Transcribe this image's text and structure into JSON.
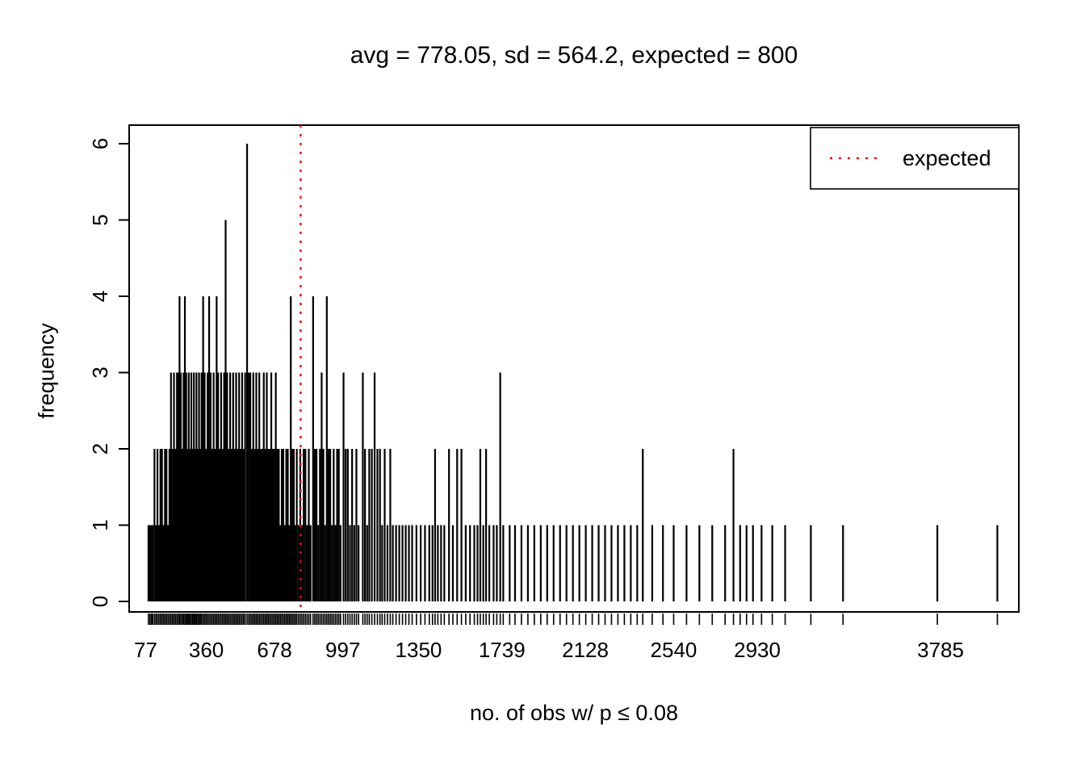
{
  "chart_data": {
    "type": "bar",
    "title": "avg = 778.05, sd = 564.2, expected = 800",
    "xlabel": "no. of obs w/ p ≤ 0.08",
    "ylabel": "frequency",
    "x_ticks": [
      77,
      360,
      678,
      997,
      1350,
      1739,
      2128,
      2540,
      2930,
      3785
    ],
    "y_ticks": [
      0,
      1,
      2,
      3,
      4,
      5,
      6
    ],
    "xlim": [
      0,
      4150
    ],
    "ylim": [
      0,
      6
    ],
    "grid": false,
    "spike_color": "#000000",
    "expected_line": {
      "x": 800,
      "color": "#ff0000",
      "style": "dotted",
      "label": "expected"
    },
    "legend": {
      "position": "top-right",
      "entries": [
        {
          "label": "expected",
          "color": "#ff0000",
          "line_style": "dotted"
        }
      ]
    },
    "points": [
      [
        90,
        1
      ],
      [
        97,
        1
      ],
      [
        104,
        1
      ],
      [
        110,
        1
      ],
      [
        118,
        2
      ],
      [
        125,
        1
      ],
      [
        132,
        2
      ],
      [
        139,
        1
      ],
      [
        146,
        2
      ],
      [
        153,
        2
      ],
      [
        160,
        1
      ],
      [
        167,
        2
      ],
      [
        174,
        2
      ],
      [
        181,
        1
      ],
      [
        188,
        2
      ],
      [
        195,
        3
      ],
      [
        202,
        2
      ],
      [
        209,
        3
      ],
      [
        216,
        2
      ],
      [
        223,
        3
      ],
      [
        230,
        3
      ],
      [
        235,
        4
      ],
      [
        241,
        3
      ],
      [
        248,
        2
      ],
      [
        254,
        3
      ],
      [
        260,
        4
      ],
      [
        266,
        3
      ],
      [
        272,
        2
      ],
      [
        278,
        3
      ],
      [
        284,
        2
      ],
      [
        290,
        3
      ],
      [
        296,
        2
      ],
      [
        302,
        3
      ],
      [
        308,
        2
      ],
      [
        314,
        3
      ],
      [
        320,
        2
      ],
      [
        326,
        3
      ],
      [
        332,
        2
      ],
      [
        338,
        3
      ],
      [
        345,
        4
      ],
      [
        352,
        3
      ],
      [
        359,
        2
      ],
      [
        366,
        3
      ],
      [
        373,
        4
      ],
      [
        380,
        3
      ],
      [
        387,
        2
      ],
      [
        394,
        3
      ],
      [
        401,
        2
      ],
      [
        408,
        4
      ],
      [
        415,
        3
      ],
      [
        422,
        2
      ],
      [
        429,
        3
      ],
      [
        436,
        2
      ],
      [
        443,
        3
      ],
      [
        450,
        5
      ],
      [
        457,
        3
      ],
      [
        464,
        2
      ],
      [
        471,
        3
      ],
      [
        478,
        2
      ],
      [
        485,
        3
      ],
      [
        492,
        2
      ],
      [
        499,
        3
      ],
      [
        506,
        2
      ],
      [
        513,
        3
      ],
      [
        520,
        2
      ],
      [
        527,
        3
      ],
      [
        534,
        2
      ],
      [
        541,
        3
      ],
      [
        550,
        6
      ],
      [
        558,
        3
      ],
      [
        565,
        3
      ],
      [
        572,
        2
      ],
      [
        579,
        3
      ],
      [
        586,
        2
      ],
      [
        593,
        3
      ],
      [
        600,
        2
      ],
      [
        607,
        3
      ],
      [
        614,
        2
      ],
      [
        621,
        2
      ],
      [
        628,
        3
      ],
      [
        635,
        2
      ],
      [
        642,
        3
      ],
      [
        649,
        2
      ],
      [
        656,
        2
      ],
      [
        663,
        3
      ],
      [
        670,
        2
      ],
      [
        677,
        2
      ],
      [
        684,
        3
      ],
      [
        691,
        2
      ],
      [
        698,
        2
      ],
      [
        705,
        1
      ],
      [
        712,
        2
      ],
      [
        719,
        2
      ],
      [
        726,
        1
      ],
      [
        733,
        2
      ],
      [
        740,
        2
      ],
      [
        747,
        1
      ],
      [
        754,
        4
      ],
      [
        761,
        2
      ],
      [
        768,
        2
      ],
      [
        775,
        1
      ],
      [
        782,
        2
      ],
      [
        790,
        1
      ],
      [
        798,
        2
      ],
      [
        806,
        1
      ],
      [
        814,
        2
      ],
      [
        822,
        2
      ],
      [
        830,
        1
      ],
      [
        838,
        2
      ],
      [
        846,
        1
      ],
      [
        858,
        4
      ],
      [
        866,
        2
      ],
      [
        874,
        2
      ],
      [
        882,
        1
      ],
      [
        890,
        2
      ],
      [
        898,
        3
      ],
      [
        906,
        2
      ],
      [
        914,
        1
      ],
      [
        922,
        4
      ],
      [
        930,
        2
      ],
      [
        938,
        2
      ],
      [
        946,
        1
      ],
      [
        954,
        2
      ],
      [
        962,
        1
      ],
      [
        970,
        2
      ],
      [
        978,
        2
      ],
      [
        986,
        1
      ],
      [
        1000,
        3
      ],
      [
        1010,
        2
      ],
      [
        1020,
        2
      ],
      [
        1030,
        1
      ],
      [
        1040,
        2
      ],
      [
        1050,
        1
      ],
      [
        1060,
        2
      ],
      [
        1070,
        1
      ],
      [
        1090,
        3
      ],
      [
        1100,
        2
      ],
      [
        1110,
        1
      ],
      [
        1120,
        2
      ],
      [
        1132,
        2
      ],
      [
        1145,
        3
      ],
      [
        1158,
        2
      ],
      [
        1170,
        2
      ],
      [
        1180,
        1
      ],
      [
        1192,
        2
      ],
      [
        1205,
        1
      ],
      [
        1218,
        2
      ],
      [
        1230,
        1
      ],
      [
        1245,
        1
      ],
      [
        1260,
        1
      ],
      [
        1275,
        1
      ],
      [
        1290,
        1
      ],
      [
        1305,
        1
      ],
      [
        1320,
        1
      ],
      [
        1340,
        1
      ],
      [
        1360,
        1
      ],
      [
        1380,
        1
      ],
      [
        1400,
        1
      ],
      [
        1415,
        1
      ],
      [
        1427,
        2
      ],
      [
        1440,
        1
      ],
      [
        1455,
        1
      ],
      [
        1470,
        1
      ],
      [
        1492,
        2
      ],
      [
        1510,
        1
      ],
      [
        1530,
        2
      ],
      [
        1550,
        2
      ],
      [
        1570,
        1
      ],
      [
        1590,
        1
      ],
      [
        1610,
        1
      ],
      [
        1625,
        1
      ],
      [
        1638,
        2
      ],
      [
        1652,
        1
      ],
      [
        1665,
        2
      ],
      [
        1680,
        1
      ],
      [
        1700,
        1
      ],
      [
        1715,
        1
      ],
      [
        1731,
        3
      ],
      [
        1745,
        1
      ],
      [
        1775,
        1
      ],
      [
        1800,
        1
      ],
      [
        1830,
        1
      ],
      [
        1860,
        1
      ],
      [
        1890,
        1
      ],
      [
        1920,
        1
      ],
      [
        1950,
        1
      ],
      [
        1980,
        1
      ],
      [
        2010,
        1
      ],
      [
        2040,
        1
      ],
      [
        2070,
        1
      ],
      [
        2100,
        1
      ],
      [
        2130,
        1
      ],
      [
        2160,
        1
      ],
      [
        2190,
        1
      ],
      [
        2220,
        1
      ],
      [
        2250,
        1
      ],
      [
        2280,
        1
      ],
      [
        2310,
        1
      ],
      [
        2340,
        1
      ],
      [
        2370,
        1
      ],
      [
        2396,
        2
      ],
      [
        2440,
        1
      ],
      [
        2490,
        1
      ],
      [
        2540,
        1
      ],
      [
        2600,
        1
      ],
      [
        2660,
        1
      ],
      [
        2720,
        1
      ],
      [
        2780,
        1
      ],
      [
        2819,
        2
      ],
      [
        2850,
        1
      ],
      [
        2880,
        1
      ],
      [
        2910,
        1
      ],
      [
        2950,
        1
      ],
      [
        3000,
        1
      ],
      [
        3060,
        1
      ],
      [
        3180,
        1
      ],
      [
        3330,
        1
      ],
      [
        3770,
        1
      ],
      [
        4050,
        1
      ]
    ]
  }
}
